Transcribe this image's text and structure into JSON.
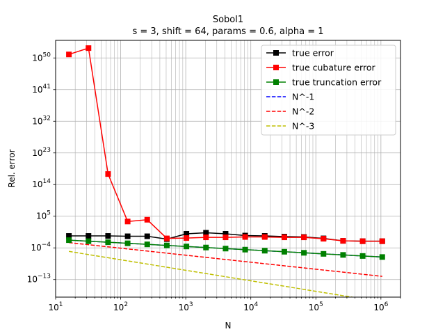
{
  "chart_data": {
    "type": "line",
    "title": "Sobol1",
    "subtitle": "s = 3, shift = 64, params = 0.6, alpha = 1",
    "xlabel": "N",
    "ylabel": "Rel. error",
    "xscale": "log",
    "yscale": "log",
    "xlim": [
      10,
      2000000
    ],
    "ylim_log10": [
      -18,
      55
    ],
    "x_tick_labels": [
      {
        "base": "10",
        "exp": "1"
      },
      {
        "base": "10",
        "exp": "2"
      },
      {
        "base": "10",
        "exp": "3"
      },
      {
        "base": "10",
        "exp": "4"
      },
      {
        "base": "10",
        "exp": "5"
      },
      {
        "base": "10",
        "exp": "6"
      }
    ],
    "y_tick_labels": [
      {
        "base": "10",
        "exp": "50"
      },
      {
        "base": "10",
        "exp": "41"
      },
      {
        "base": "10",
        "exp": "32"
      },
      {
        "base": "10",
        "exp": "23"
      },
      {
        "base": "10",
        "exp": "14"
      },
      {
        "base": "10",
        "exp": "5"
      },
      {
        "base": "10",
        "exp": "−4"
      },
      {
        "base": "10",
        "exp": "−13"
      }
    ],
    "grid": true,
    "legend_position": "top-right",
    "x": [
      16,
      32,
      64,
      128,
      256,
      512,
      1024,
      2048,
      4096,
      8192,
      16384,
      32768,
      65536,
      131072,
      262144,
      524288,
      1048576
    ],
    "series": [
      {
        "name": "true error",
        "color": "#000000",
        "style": "solid",
        "marker": "square",
        "log10_values": [
          -0.6,
          -0.6,
          -0.6,
          -0.7,
          -0.7,
          -1.5,
          0.0,
          0.3,
          0.0,
          -0.5,
          -0.6,
          -0.8,
          -0.9,
          -1.3,
          -2.0,
          -2.1,
          -2.1
        ]
      },
      {
        "name": "true cubature error",
        "color": "#ff0000",
        "style": "solid",
        "marker": "square",
        "log10_values": [
          51.0,
          52.8,
          17.0,
          3.5,
          4.0,
          -1.3,
          -1.2,
          -1.0,
          -1.0,
          -0.9,
          -0.9,
          -1.0,
          -1.0,
          -1.4,
          -2.0,
          -2.1,
          -2.1
        ]
      },
      {
        "name": "true truncation error",
        "color": "#008000",
        "style": "solid",
        "marker": "square",
        "log10_values": [
          -1.8,
          -2.1,
          -2.4,
          -2.7,
          -3.0,
          -3.3,
          -3.6,
          -3.9,
          -4.2,
          -4.5,
          -4.8,
          -5.1,
          -5.4,
          -5.7,
          -6.0,
          -6.3,
          -6.6
        ]
      },
      {
        "name": "N^-1",
        "color": "#0000ff",
        "style": "dashed",
        "marker": "none",
        "log10_values": [
          -1.8,
          -2.1,
          -2.4,
          -2.7,
          -3.0,
          -3.3,
          -3.6,
          -3.9,
          -4.2,
          -4.5,
          -4.8,
          -5.1,
          -5.4,
          -5.7,
          -6.0,
          -6.3,
          -6.6
        ]
      },
      {
        "name": "N^-2",
        "color": "#ff0000",
        "style": "dashed",
        "marker": "none",
        "log10_values": [
          -2.5,
          -3.1,
          -3.7,
          -4.3,
          -4.9,
          -5.5,
          -6.1,
          -6.7,
          -7.3,
          -7.9,
          -8.5,
          -9.1,
          -9.7,
          -10.3,
          -10.9,
          -11.5,
          -12.1
        ]
      },
      {
        "name": "N^-3",
        "color": "#bfbf00",
        "style": "dashed",
        "marker": "none",
        "log10_values": [
          -5.0,
          -5.9,
          -6.8,
          -7.7,
          -8.6,
          -9.5,
          -10.4,
          -11.3,
          -12.2,
          -13.1,
          -14.0,
          -14.9,
          -15.8,
          -16.7,
          -17.6,
          -18.5,
          -19.4
        ]
      }
    ]
  }
}
